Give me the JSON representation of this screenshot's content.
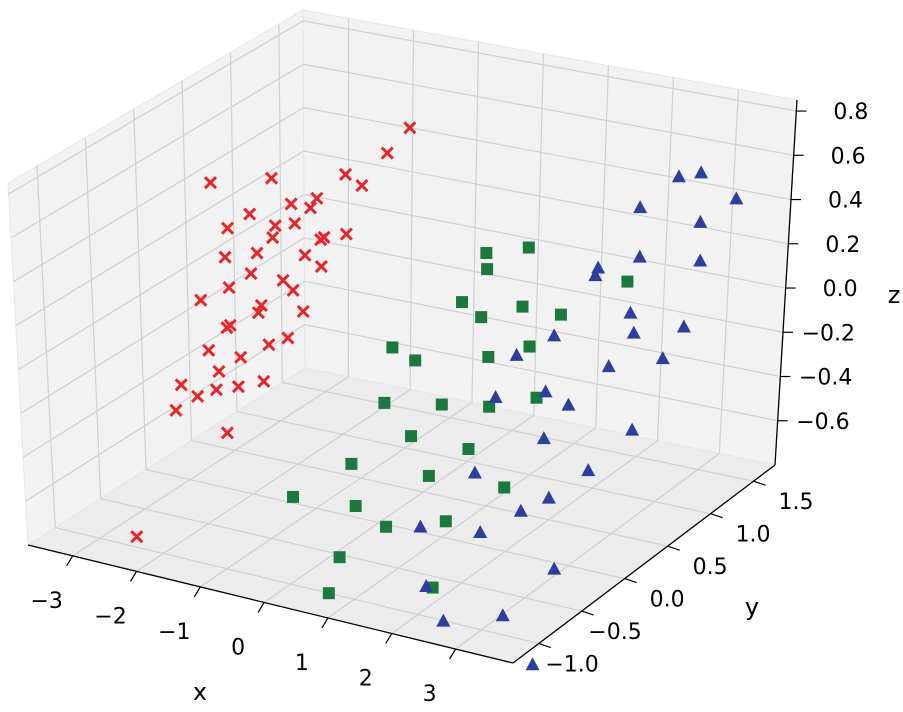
{
  "chart_data": {
    "type": "scatter",
    "projection": "3d",
    "xlabel": "x",
    "ylabel": "y",
    "zlabel": "z",
    "xlim": [
      -3.7,
      3.9
    ],
    "ylim": [
      -1.3,
      1.75
    ],
    "zlim": [
      -0.8,
      0.85
    ],
    "xticks": [
      {
        "v": -3,
        "t": "−3"
      },
      {
        "v": -2,
        "t": "−2"
      },
      {
        "v": -1,
        "t": "−1"
      },
      {
        "v": 0,
        "t": "0"
      },
      {
        "v": 1,
        "t": "1"
      },
      {
        "v": 2,
        "t": "2"
      },
      {
        "v": 3,
        "t": "3"
      }
    ],
    "yticks": [
      {
        "v": -1.0,
        "t": "−1.0"
      },
      {
        "v": -0.5,
        "t": "−0.5"
      },
      {
        "v": 0.0,
        "t": "0.0"
      },
      {
        "v": 0.5,
        "t": "0.5"
      },
      {
        "v": 1.0,
        "t": "1.0"
      },
      {
        "v": 1.5,
        "t": "1.5"
      }
    ],
    "zticks": [
      {
        "v": -0.6,
        "t": "−0.6"
      },
      {
        "v": -0.4,
        "t": "−0.4"
      },
      {
        "v": -0.2,
        "t": "−0.2"
      },
      {
        "v": 0.0,
        "t": "0.0"
      },
      {
        "v": 0.2,
        "t": "0.2"
      },
      {
        "v": 0.4,
        "t": "0.4"
      },
      {
        "v": 0.6,
        "t": "0.6"
      },
      {
        "v": 0.8,
        "t": "0.8"
      }
    ],
    "grid": true,
    "series": [
      {
        "marker": "x",
        "color": "#e8262a",
        "points": [
          [
            -2.7,
            0.1,
            0.55
          ],
          [
            -2.5,
            0.6,
            0.45
          ],
          [
            -3.0,
            -0.6,
            -0.9
          ],
          [
            -2.8,
            0.3,
            0.15
          ],
          [
            -2.6,
            0.2,
            0.05
          ],
          [
            -2.9,
            0.1,
            0.0
          ],
          [
            -2.4,
            0.3,
            0.1
          ],
          [
            -2.2,
            0.4,
            0.25
          ],
          [
            -2.0,
            0.5,
            0.3
          ],
          [
            -1.8,
            0.6,
            0.4
          ],
          [
            -2.3,
            0.0,
            -0.05
          ],
          [
            -2.1,
            0.2,
            0.0
          ],
          [
            -2.5,
            -0.1,
            -0.15
          ],
          [
            -2.0,
            0.1,
            0.0
          ],
          [
            -1.9,
            0.3,
            0.1
          ],
          [
            -2.7,
            0.5,
            0.3
          ],
          [
            -1.5,
            0.7,
            0.5
          ],
          [
            -1.6,
            0.2,
            0.1
          ],
          [
            -2.2,
            -0.2,
            -0.2
          ],
          [
            -1.7,
            0.0,
            -0.1
          ],
          [
            -2.4,
            -0.3,
            -0.3
          ],
          [
            -1.8,
            -0.4,
            -0.4
          ],
          [
            -1.2,
            0.5,
            0.3
          ],
          [
            -1.0,
            0.8,
            0.6
          ],
          [
            -1.3,
            0.3,
            0.2
          ],
          [
            -1.4,
            0.4,
            0.3
          ],
          [
            -2.6,
            0.7,
            0.2
          ],
          [
            -2.8,
            -0.2,
            -0.3
          ],
          [
            -2.0,
            -0.1,
            -0.15
          ],
          [
            -1.9,
            0.6,
            0.35
          ],
          [
            -1.6,
            0.5,
            0.25
          ],
          [
            -2.3,
            0.3,
            0.2
          ],
          [
            -2.1,
            -0.3,
            -0.25
          ],
          [
            -1.7,
            0.4,
            0.2
          ],
          [
            -1.1,
            0.6,
            0.5
          ],
          [
            -0.8,
            0.9,
            0.7
          ],
          [
            -2.5,
            0.1,
            -0.1
          ],
          [
            -1.5,
            -0.2,
            -0.2
          ],
          [
            -1.3,
            0.1,
            0.05
          ],
          [
            -2.9,
            0.4,
            0.25
          ],
          [
            -2.2,
            0.6,
            0.35
          ],
          [
            -1.9,
            -0.2,
            -0.25
          ],
          [
            -2.6,
            -0.4,
            -0.35
          ],
          [
            -1.4,
            0.0,
            -0.05
          ]
        ]
      },
      {
        "marker": "s",
        "color": "#1a7a3c",
        "points": [
          [
            0.0,
            -0.3,
            -0.45
          ],
          [
            0.3,
            0.2,
            -0.1
          ],
          [
            -0.5,
            -0.6,
            -0.55
          ],
          [
            0.6,
            0.5,
            0.1
          ],
          [
            1.0,
            0.0,
            -0.2
          ],
          [
            1.3,
            0.3,
            -0.05
          ],
          [
            0.8,
            -0.2,
            -0.3
          ],
          [
            1.5,
            -0.5,
            -0.35
          ],
          [
            0.2,
            -0.4,
            -0.6
          ],
          [
            1.8,
            0.4,
            0.0
          ],
          [
            0.5,
            -0.8,
            -0.7
          ],
          [
            1.2,
            0.8,
            0.3
          ],
          [
            2.0,
            0.6,
            0.1
          ],
          [
            0.9,
            0.5,
            0.05
          ],
          [
            1.6,
            0.1,
            -0.2
          ],
          [
            2.2,
            0.2,
            -0.15
          ],
          [
            -0.2,
            0.3,
            -0.1
          ],
          [
            0.4,
            0.9,
            0.2
          ],
          [
            1.1,
            -0.7,
            -0.55
          ],
          [
            2.4,
            -0.3,
            -0.4
          ],
          [
            1.9,
            -0.6,
            -0.5
          ],
          [
            0.7,
            0.7,
            0.2
          ],
          [
            1.4,
            0.6,
            0.1
          ],
          [
            2.6,
            0.9,
            0.2
          ],
          [
            0.1,
            0.0,
            -0.25
          ],
          [
            1.7,
            -0.2,
            -0.3
          ],
          [
            0.6,
            -1.0,
            -0.8
          ],
          [
            2.1,
            -0.9,
            -0.7
          ]
        ]
      },
      {
        "marker": "^",
        "color": "#2a3f9e",
        "points": [
          [
            2.5,
            1.5,
            0.5
          ],
          [
            2.7,
            1.6,
            0.5
          ],
          [
            3.0,
            1.4,
            0.35
          ],
          [
            2.0,
            1.0,
            0.2
          ],
          [
            2.8,
            0.8,
            0.1
          ],
          [
            3.3,
            1.2,
            0.25
          ],
          [
            1.9,
            0.6,
            0.0
          ],
          [
            2.2,
            0.3,
            -0.15
          ],
          [
            2.9,
            0.5,
            -0.05
          ],
          [
            3.5,
            0.9,
            0.05
          ],
          [
            2.6,
            0.0,
            -0.25
          ],
          [
            3.1,
            -0.3,
            -0.4
          ],
          [
            1.8,
            -0.2,
            -0.4
          ],
          [
            2.3,
            -0.5,
            -0.55
          ],
          [
            3.6,
            -0.6,
            -0.6
          ],
          [
            2.4,
            -1.0,
            -0.8
          ],
          [
            3.2,
            -0.9,
            -0.75
          ],
          [
            3.7,
            0.2,
            -0.2
          ],
          [
            1.6,
            0.4,
            -0.05
          ],
          [
            2.1,
            0.9,
            0.2
          ],
          [
            3.4,
            1.5,
            0.45
          ],
          [
            1.5,
            -0.6,
            -0.55
          ],
          [
            2.7,
            0.2,
            -0.15
          ],
          [
            3.0,
            0.7,
            0.05
          ],
          [
            2.0,
            -0.9,
            -0.7
          ],
          [
            3.8,
            -1.0,
            -0.9
          ],
          [
            2.5,
            1.1,
            0.25
          ],
          [
            3.3,
            0.0,
            -0.35
          ],
          [
            1.7,
            0.1,
            -0.15
          ],
          [
            2.8,
            -0.4,
            -0.45
          ],
          [
            3.6,
            0.6,
            0.0
          ],
          [
            2.2,
            1.3,
            0.4
          ]
        ]
      }
    ]
  }
}
